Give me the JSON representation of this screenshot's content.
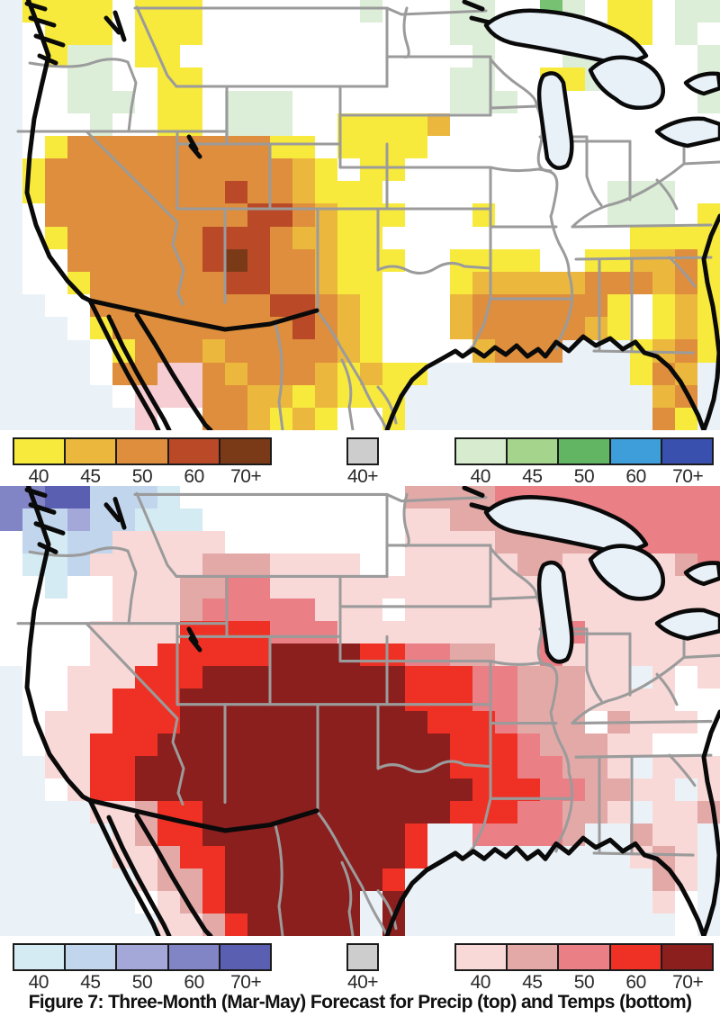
{
  "figure": {
    "caption": "Figure 7: Three-Month (Mar-May) Forecast for Precip (top) and Temps (bottom)"
  },
  "colors": {
    "ocean": "#EAF2F8",
    "land": "#FFFFFF",
    "lake_fill": "#E9F1F8",
    "coastline": "#0A0A0A",
    "state_border": "#9B9B9B",
    "legend_border": "#1B1B1B"
  },
  "legends": {
    "precip_below": {
      "title": "precip-below-normal",
      "labels": [
        "40",
        "45",
        "50",
        "60",
        "70+"
      ],
      "colors": [
        "#F7EA3C",
        "#EBB83D",
        "#DE8E3C",
        "#BA4A27",
        "#7A3A18"
      ]
    },
    "precip_normal": {
      "title": "precip-near-normal",
      "labels": [
        "40+"
      ],
      "colors": [
        "#CDCDCD"
      ]
    },
    "precip_above": {
      "title": "precip-above-normal",
      "labels": [
        "40",
        "45",
        "50",
        "60",
        "70+"
      ],
      "colors": [
        "#D7ECCE",
        "#A5D48C",
        "#62B562",
        "#3E9ED9",
        "#3A50AF"
      ]
    },
    "temp_below": {
      "title": "temp-below-normal",
      "labels": [
        "40",
        "45",
        "50",
        "60",
        "70+"
      ],
      "colors": [
        "#D5EBF3",
        "#C1D5EC",
        "#A4A8D8",
        "#8185C6",
        "#5B5FB2"
      ]
    },
    "temp_normal": {
      "title": "temp-near-normal",
      "labels": [
        "40+"
      ],
      "colors": [
        "#CDCDCD"
      ]
    },
    "temp_above": {
      "title": "temp-above-normal",
      "labels": [
        "40",
        "45",
        "50",
        "60",
        "70+"
      ],
      "colors": [
        "#F8D9D8",
        "#E3A9A7",
        "#EA7F86",
        "#EE3124",
        "#8B1F1E"
      ]
    }
  },
  "maps": {
    "precip": {
      "name": "precip-forecast-map",
      "cols": 32,
      "palette": {
        "y": "#F7EA3C",
        "Y": "#EBB83D",
        "O": "#DE8E3C",
        "R": "#BA4A27",
        "B": "#7A3A18",
        "g": "#DCEDD8",
        "G": "#77C272",
        "p": "#F6CDD2",
        ".": "#FFFFFF"
      },
      "rows": [
        " yyyy.yyy.......g...gg..Gg.yy.gg",
        " .yyy.yyy...........gg..Gggyy.g.",
        " .ygg.yy.............g...gg....g",
        " ..gg..yy...........gg..yyg....g",
        " ..ggg.yy.ggg.......ggg.y......g",
        " ...g..yy.ggg..yyyyY............",
        " .yOOOOOOOOOyy.yyyy.............",
        " yOOOOOOOOOOOYy.yy..............",
        " yOOOOOOOOROOYyyy..........ggg..",
        " .OOOOOOOOORROYyyy...y.....ggg.y",
        " .yOOOOOORRROYYyy...........yyyy",
        " ..OOOOOORBROOYyyy..yyyy..yyYYOy",
        " ..yOOOOOORROOYyy...yYYYYYOOOYOy",
        "  ..OOOOOOOORROYy...YOOOOOOy.yYy",
        "   .yOOOOOOOOROYy...YOOOOOYy.yYy",
        "    .yOOOYOOOOOYy....YOOO   yYOy",
        "    .OOppOYOOOYyYyy         yOY ",
        "     .pppOOYYyYyyy           YO ",
        "      p..OOYyYy..y           Oy "
      ]
    },
    "temp": {
      "name": "temp-forecast-map",
      "cols": 32,
      "palette": {
        "1": "#F8D9D8",
        "2": "#E3A9A7",
        "3": "#EA7F86",
        "4": "#EE3124",
        "5": "#8B1F1E",
        "a": "#D5EBF3",
        "b": "#C1D5EC",
        "c": "#A4A8D8",
        "d": "#8185C6",
        "e": "#5B5FB2",
        ".": "#FFFFFF"
      },
      "rows": [
        "ddeebbba..........22223333333333",
        "dbbcbbaaa.........11222223333333",
        ".babb11111........11112222223333",
        ".aab111112221111..11111221111123",
        "..a..111223311111111111121111111",
        ".....111233333111.11111111111111",
        "....1111444433311111111133111111",
        "....1114444455554433221131111111",
        " ..1114445555555554443322211 1.11",
        " ..114445555555555444332221111..",
        " .111444555555555554443222.2111.",
        " .114445555555555555444322211...",
        "  11445555555555555544433221 1111",
        "  .144555555555555555444332211 11",
        "    112445555555555544433221 11211",
        "     12445555555554  33332  211 ",
        "     11244555555554         121 ",
        "      122455555554           21 ",
        "      .124555555 5           1. ",
        "       112455555 5            . "
      ]
    }
  }
}
